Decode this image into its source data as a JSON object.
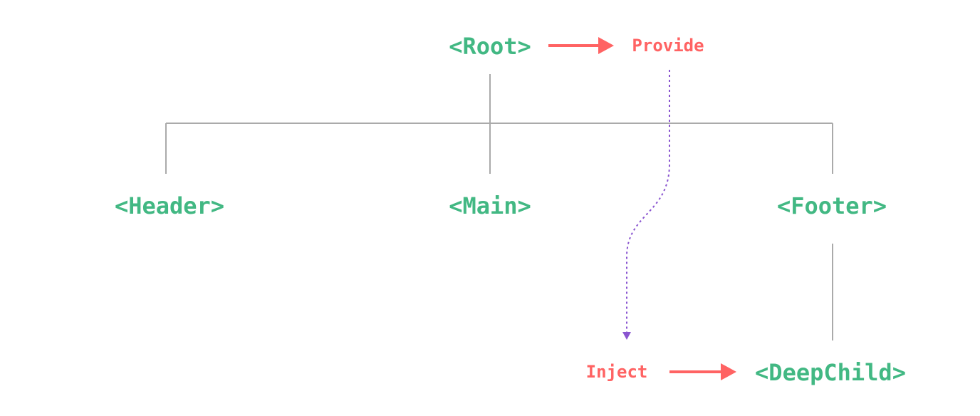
{
  "colors": {
    "component": "#42b883",
    "action": "#ff6363",
    "flow": "#8a55d0",
    "tree_line": "#aaaaaa"
  },
  "nodes": {
    "root": "<Root>",
    "header": "<Header>",
    "main": "<Main>",
    "footer": "<Footer>",
    "deep_child": "<DeepChild>"
  },
  "labels": {
    "provide": "Provide",
    "inject": "Inject"
  }
}
